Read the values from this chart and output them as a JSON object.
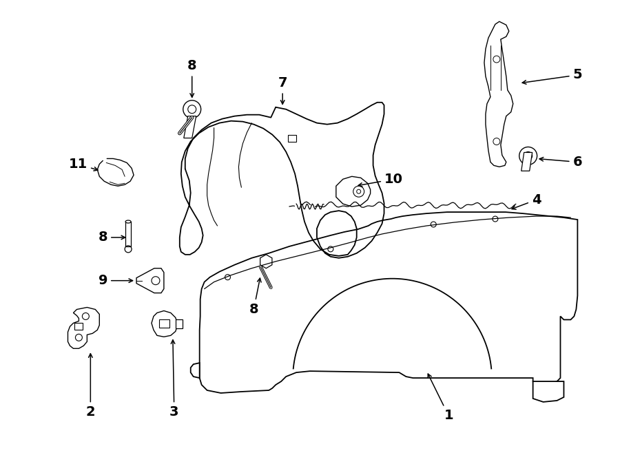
{
  "bg_color": "#ffffff",
  "line_color": "#000000",
  "text_color": "#000000",
  "figsize": [
    9.0,
    6.61
  ],
  "dpi": 100
}
